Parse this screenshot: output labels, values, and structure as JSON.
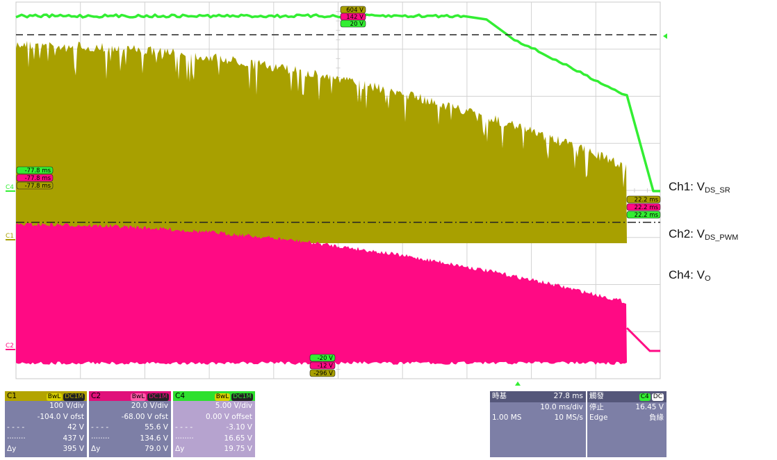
{
  "channel_legend": [
    {
      "prefix": "Ch1: V",
      "sub": "DS_SR"
    },
    {
      "prefix": "Ch2: V",
      "sub": "DS_PWM"
    },
    {
      "prefix": "Ch4: V",
      "sub": "O"
    }
  ],
  "markers": {
    "left_times": [
      "-77.8 ms",
      "-77.8 ms",
      "-77.8 ms"
    ],
    "right_times": [
      "22.2 ms",
      "22.2 ms",
      "22.2 ms"
    ],
    "top_values": [
      "604 V",
      "142 V",
      "20 V"
    ],
    "bottom_values": [
      "-20 V",
      "-12 V",
      "-296 V"
    ],
    "trace_labels": [
      "C4",
      "C1",
      "C2"
    ]
  },
  "channels": [
    {
      "name": "C1",
      "bwl": "BwL",
      "coupling": "DC1M",
      "vdiv": "100 V/div",
      "offset": "-104.0 V ofst",
      "cursor1": "42 V",
      "cursor2": "437 V",
      "dy_label": "Δy",
      "dy": "395 V",
      "header_color": "#b3a400",
      "body_color": "#7d7fa6"
    },
    {
      "name": "C2",
      "bwl": "BwL",
      "coupling": "DC1M",
      "vdiv": "20.0 V/div",
      "offset": "-68.00 V ofst",
      "cursor1": "55.6 V",
      "cursor2": "134.6 V",
      "dy_label": "Δy",
      "dy": "79.0 V",
      "header_color": "#e0107a",
      "body_color": "#7d7fa6"
    },
    {
      "name": "C4",
      "bwl": "BwL",
      "coupling": "DC1M",
      "vdiv": "5.00 V/div",
      "offset": "0.00 V offset",
      "cursor1": "-3.10 V",
      "cursor2": "16.65 V",
      "dy_label": "Δy",
      "dy": "19.75 V",
      "header_color": "#2ee02e",
      "body_color": "#b6a3cf"
    }
  ],
  "timebase": {
    "label": "時基",
    "position": "27.8 ms",
    "div": "10.0 ms/div",
    "samples": "1.00 MS",
    "rate": "10 MS/s"
  },
  "trigger": {
    "label": "觸發",
    "source": "C4",
    "coupling": "DC",
    "mode": "停止",
    "level": "16.45 V",
    "type": "Edge",
    "slope": "負緣"
  },
  "colors": {
    "ch1": "#a8a000",
    "ch2": "#ff0a84",
    "ch4": "#33ee33",
    "panel": "#7d7fa6"
  }
}
